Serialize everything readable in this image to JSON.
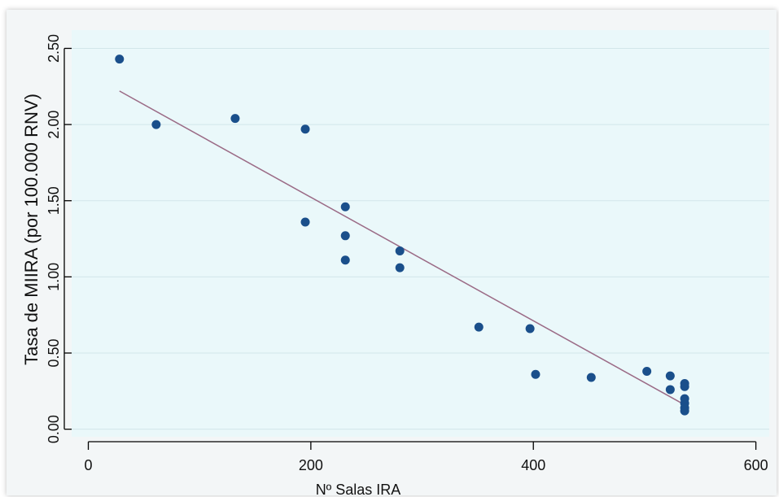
{
  "colors": {
    "plot_background": "#eaf8fa",
    "point": "#1a4f8b",
    "fit_line": "#9b6b86",
    "grid": "#d2e6ea",
    "axis": "#000000"
  },
  "chart_data": {
    "type": "scatter",
    "title": "",
    "xlabel": "Nº Salas IRA",
    "ylabel": "Tasa de MIIRA (por 100.000 RNV)",
    "xlim": [
      -15,
      612
    ],
    "ylim": [
      -0.05,
      2.62
    ],
    "x_ticks": [
      0,
      200,
      400,
      600
    ],
    "x_tick_labels": [
      "0",
      "200",
      "400",
      "600"
    ],
    "y_ticks": [
      0,
      0.5,
      1.0,
      1.5,
      2.0,
      2.5
    ],
    "y_tick_labels": [
      "0.00",
      "0.50",
      "1.00",
      "1.50",
      "2.00",
      "2.50"
    ],
    "grid": "horizontal",
    "series": [
      {
        "type": "scatter",
        "points": [
          {
            "x": 28,
            "y": 2.43
          },
          {
            "x": 61,
            "y": 2.0
          },
          {
            "x": 132,
            "y": 2.04
          },
          {
            "x": 195,
            "y": 1.97
          },
          {
            "x": 195,
            "y": 1.36
          },
          {
            "x": 231,
            "y": 1.46
          },
          {
            "x": 231,
            "y": 1.27
          },
          {
            "x": 231,
            "y": 1.11
          },
          {
            "x": 280,
            "y": 1.17
          },
          {
            "x": 280,
            "y": 1.06
          },
          {
            "x": 351,
            "y": 0.67
          },
          {
            "x": 397,
            "y": 0.66
          },
          {
            "x": 402,
            "y": 0.36
          },
          {
            "x": 452,
            "y": 0.34
          },
          {
            "x": 502,
            "y": 0.38
          },
          {
            "x": 523,
            "y": 0.35
          },
          {
            "x": 523,
            "y": 0.26
          },
          {
            "x": 536,
            "y": 0.3
          },
          {
            "x": 536,
            "y": 0.28
          },
          {
            "x": 536,
            "y": 0.2
          },
          {
            "x": 536,
            "y": 0.17
          },
          {
            "x": 536,
            "y": 0.14
          },
          {
            "x": 536,
            "y": 0.12
          }
        ]
      },
      {
        "type": "line",
        "points": [
          {
            "x": 28,
            "y": 2.22
          },
          {
            "x": 536,
            "y": 0.16
          }
        ]
      }
    ]
  }
}
